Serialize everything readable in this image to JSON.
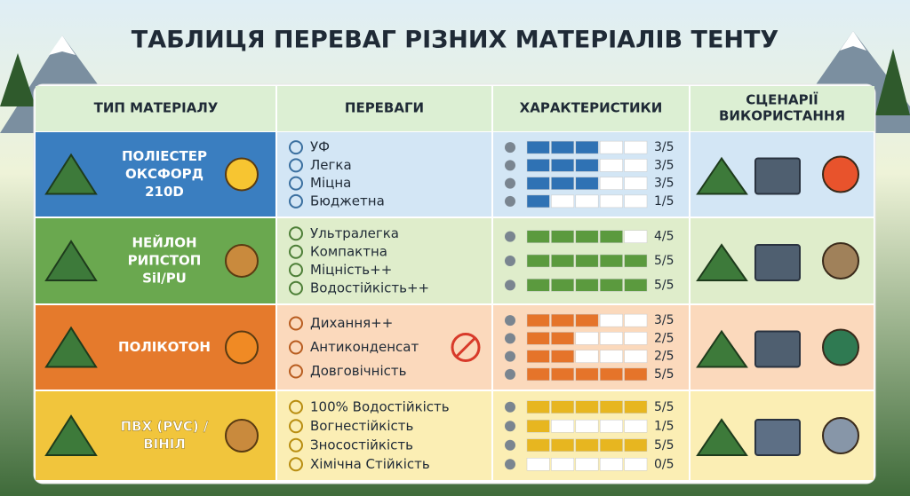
{
  "title": "ТАБЛИЦЯ ПЕРЕВАГ РІЗНИХ МАТЕРІАЛІВ ТЕНТУ",
  "headers": [
    [
      "ТИП МАТЕРІАЛУ"
    ],
    [
      "ПЕРЕВАГИ"
    ],
    [
      "ХАРАКТЕРИСТИКИ"
    ],
    [
      "СЦЕНАРІЇ",
      "ВИКОРИСТАННЯ"
    ]
  ],
  "rating_max": 5,
  "rows": [
    {
      "material": [
        "ПОЛІЕСТЕР",
        "ОКСФОРД",
        "210D"
      ],
      "advantages": [
        "УФ",
        "Легка",
        "Міцна",
        "Бюджетна"
      ],
      "ratings": [
        {
          "value": 3,
          "label": "3/5"
        },
        {
          "value": 3,
          "label": "3/5"
        },
        {
          "value": 3,
          "label": "3/5"
        },
        {
          "value": 1,
          "label": "1/5"
        }
      ]
    },
    {
      "material": [
        "НЕЙЛОН",
        "РИПСТОП",
        "Sil/PU"
      ],
      "advantages": [
        "Ультралегка",
        "Компактна",
        "Міцність++",
        "Водостійкість++"
      ],
      "ratings": [
        {
          "value": 4,
          "label": "4/5"
        },
        {
          "value": 5,
          "label": "5/5"
        },
        {
          "value": 5,
          "label": "5/5"
        }
      ]
    },
    {
      "material": [
        "ПОЛІКОТОН"
      ],
      "advantages": [
        "Дихання++",
        "Антиконденсат",
        "Довговічність"
      ],
      "ratings": [
        {
          "value": 3,
          "label": "3/5"
        },
        {
          "value": 2,
          "label": "2/5"
        },
        {
          "value": 2,
          "label": "2/5"
        },
        {
          "value": 5,
          "label": "5/5"
        }
      ]
    },
    {
      "material": [
        "ПВХ (PVC) /",
        "ВІНІЛ"
      ],
      "advantages": [
        "100% Водостійкість",
        "Вогнестійкість",
        "Зносостійкість",
        "Хімічна Стійкість"
      ],
      "ratings": [
        {
          "value": 5,
          "label": "5/5"
        },
        {
          "value": 1,
          "label": "1/5"
        },
        {
          "value": 5,
          "label": "5/5"
        },
        {
          "value": 0,
          "label": "0/5"
        }
      ]
    }
  ]
}
